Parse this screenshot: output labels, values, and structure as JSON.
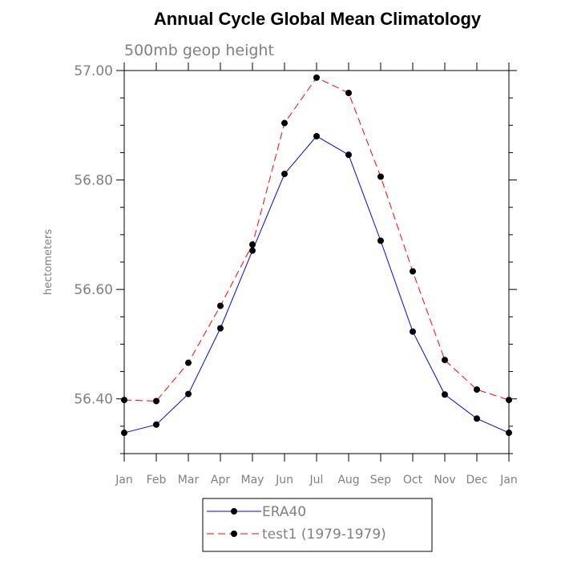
{
  "chart_data": {
    "type": "line",
    "title": "Annual Cycle Global Mean Climatology",
    "subtitle": "500mb geop height",
    "ylabel": "hectometers",
    "xlabel": "",
    "categories": [
      "Jan",
      "Feb",
      "Mar",
      "Apr",
      "May",
      "Jun",
      "Jul",
      "Aug",
      "Sep",
      "Oct",
      "Nov",
      "Dec",
      "Jan"
    ],
    "ylim": [
      56.3,
      57.0
    ],
    "yticks": [
      56.4,
      56.6,
      56.8,
      57.0
    ],
    "ytick_labels": [
      "56.40",
      "56.60",
      "56.80",
      "57.00"
    ],
    "grid": false,
    "legend_position": "bottom",
    "series": [
      {
        "name": "ERA40",
        "color": "#0000ff",
        "dash": "solid",
        "values": [
          56.338,
          56.353,
          56.409,
          56.529,
          56.671,
          56.811,
          56.88,
          56.846,
          56.689,
          56.523,
          56.408,
          56.364,
          56.338
        ]
      },
      {
        "name": "test1 (1979-1979)",
        "color": "#ff0000",
        "dash": "dashed",
        "values": [
          56.398,
          56.396,
          56.466,
          56.57,
          56.682,
          56.904,
          56.987,
          56.959,
          56.806,
          56.633,
          56.471,
          56.417,
          56.398
        ]
      }
    ]
  }
}
